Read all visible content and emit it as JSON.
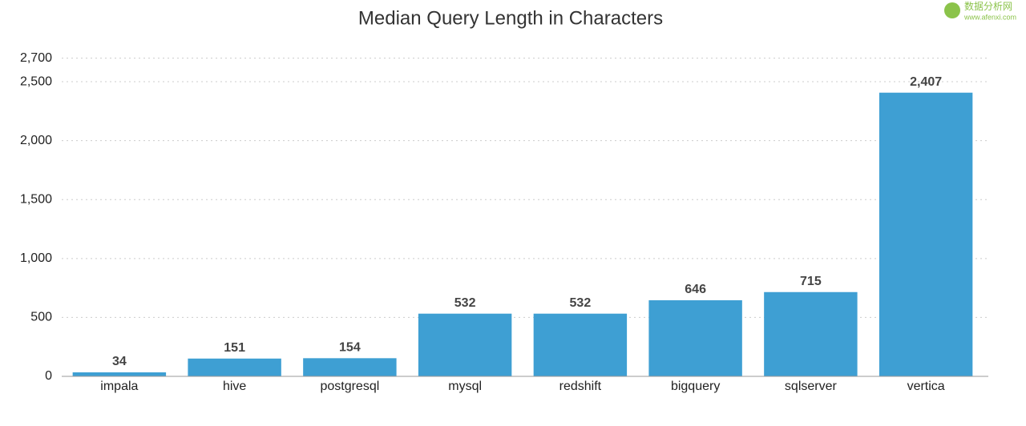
{
  "chart_data": {
    "type": "bar",
    "title": "Median Query Length in Characters",
    "categories": [
      "impala",
      "hive",
      "postgresql",
      "mysql",
      "redshift",
      "bigquery",
      "sqlserver",
      "vertica"
    ],
    "values": [
      34,
      151,
      154,
      532,
      532,
      646,
      715,
      2407
    ],
    "value_labels": [
      "34",
      "151",
      "154",
      "532",
      "532",
      "646",
      "715",
      "2,407"
    ],
    "color": "#3e9fd3",
    "ylim": [
      0,
      2700
    ],
    "yticks": [
      0,
      500,
      {
        "value": 1000,
        "label": "1,000"
      },
      {
        "value": 1500,
        "label": "1,500"
      },
      {
        "value": 2000,
        "label": "2,000"
      },
      {
        "value": 2500,
        "label": "2,500"
      },
      {
        "value": 2700,
        "label": "2,700"
      }
    ],
    "grid": true
  },
  "watermark": [
    "数据分析网",
    "www.afenxi.com"
  ]
}
